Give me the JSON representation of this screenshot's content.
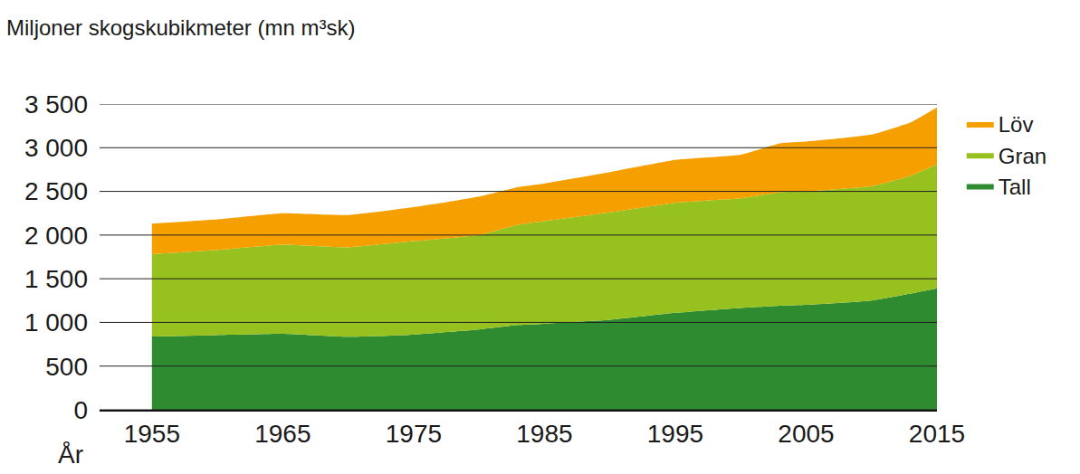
{
  "chart_data": {
    "type": "area",
    "stacked": true,
    "y_label": "Miljoner skogskubikmeter (mn m³sk)",
    "x_label": "År",
    "x": [
      1955,
      1960,
      1965,
      1970,
      1975,
      1980,
      1983,
      1985,
      1990,
      1995,
      2000,
      2003,
      2005,
      2010,
      2013,
      2015
    ],
    "series": [
      {
        "name": "Tall",
        "color": "#2e8b30",
        "values": [
          840,
          855,
          870,
          835,
          860,
          920,
          970,
          985,
          1030,
          1110,
          1165,
          1190,
          1200,
          1250,
          1330,
          1390
        ]
      },
      {
        "name": "Gran",
        "color": "#97c11f",
        "values": [
          940,
          975,
          1020,
          1025,
          1070,
          1080,
          1150,
          1175,
          1230,
          1260,
          1255,
          1300,
          1300,
          1310,
          1350,
          1420
        ]
      },
      {
        "name": "Löv",
        "color": "#f5a000",
        "values": [
          350,
          350,
          360,
          370,
          390,
          440,
          430,
          430,
          460,
          490,
          500,
          560,
          570,
          590,
          610,
          650
        ]
      }
    ],
    "xlim": [
      1951,
      2015
    ],
    "xticks": [
      1955,
      1965,
      1975,
      1985,
      1995,
      2005,
      2015
    ],
    "ylim": [
      0,
      3500
    ],
    "yticks": [
      0,
      500,
      {
        "value": 1000,
        "label": "1 000"
      },
      {
        "value": 1500,
        "label": "1 500"
      },
      {
        "value": 2000,
        "label": "2 000"
      },
      {
        "value": 2500,
        "label": "2 500"
      },
      {
        "value": 3000,
        "label": "3 000"
      },
      {
        "value": 3500,
        "label": "3 500"
      }
    ],
    "grid": true,
    "legend": "right"
  }
}
